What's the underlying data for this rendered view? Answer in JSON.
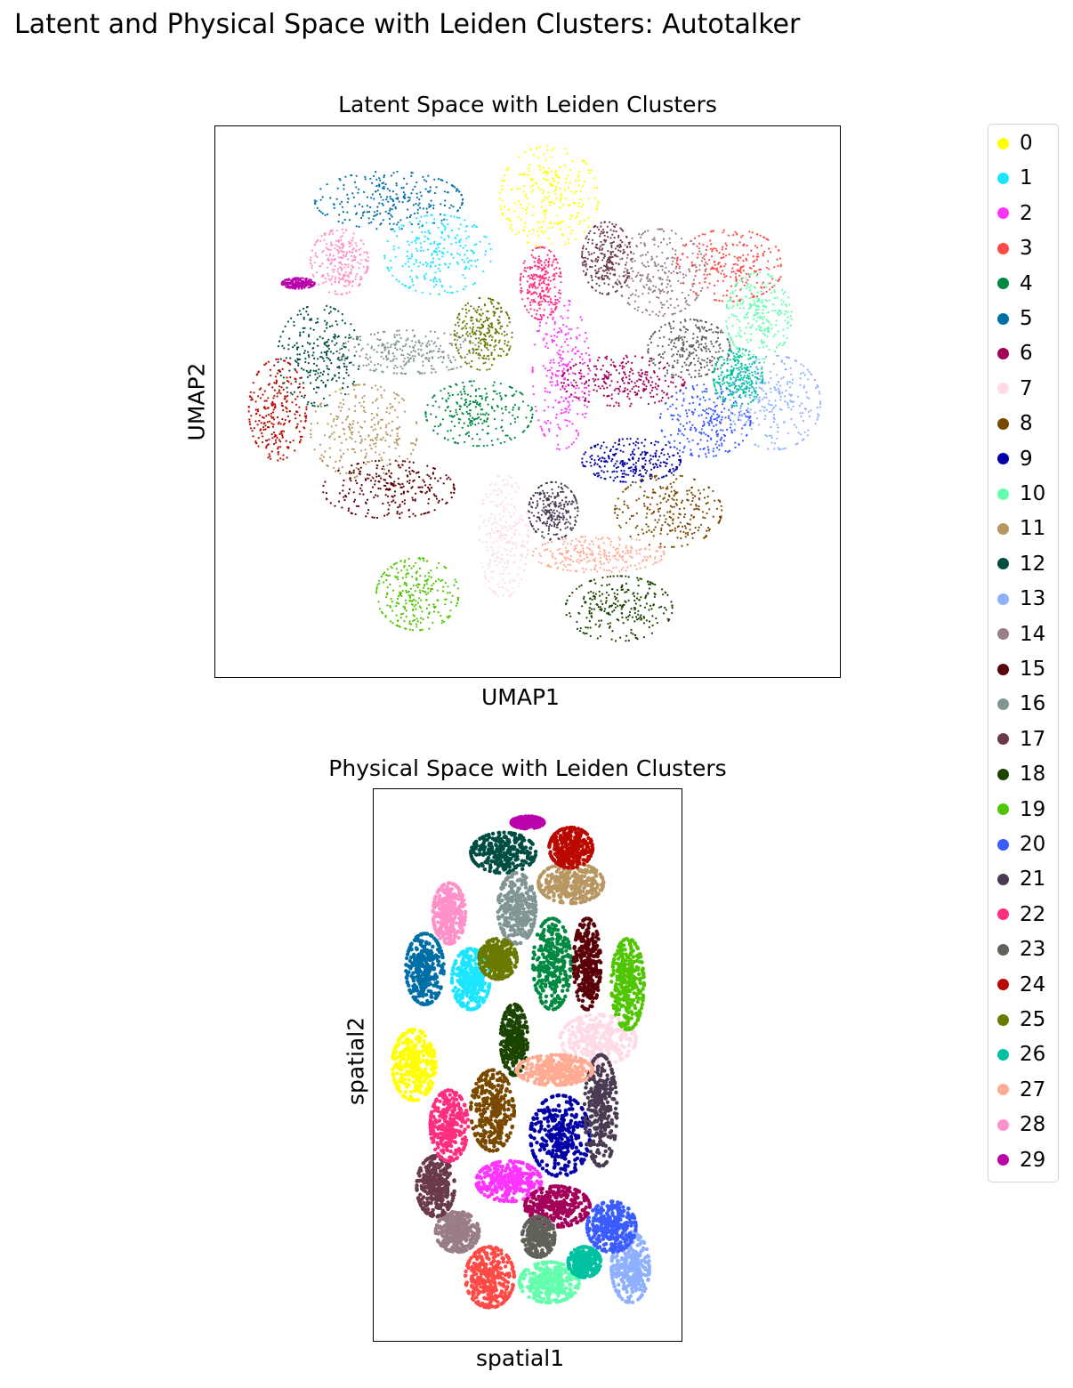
{
  "suptitle": "Latent and Physical Space with Leiden Clusters: Autotalker",
  "chart_data": [
    {
      "type": "scatter",
      "title": "Latent Space with Leiden Clusters",
      "xlabel": "UMAP1",
      "ylabel": "UMAP2",
      "xticks": [],
      "yticks": [],
      "xlim": [
        -7.4,
        7.4
      ],
      "ylim": [
        -7.4,
        7.4
      ],
      "cluster_centers": [
        {
          "cluster": "0",
          "x": 0.5,
          "y": 5.7,
          "rx": 1.2,
          "ry": 1.4
        },
        {
          "cluster": "1",
          "x": -2.2,
          "y": 4.1,
          "rx": 1.3,
          "ry": 1.1
        },
        {
          "cluster": "2",
          "x": 0.8,
          "y": 0.8,
          "rx": 0.7,
          "ry": 2.1
        },
        {
          "cluster": "3",
          "x": 4.9,
          "y": 3.8,
          "rx": 1.3,
          "ry": 1.0
        },
        {
          "cluster": "4",
          "x": -1.2,
          "y": -0.3,
          "rx": 1.3,
          "ry": 0.9
        },
        {
          "cluster": "5",
          "x": -3.4,
          "y": 5.6,
          "rx": 1.8,
          "ry": 0.8
        },
        {
          "cluster": "6",
          "x": 2.3,
          "y": 0.6,
          "rx": 1.5,
          "ry": 0.7
        },
        {
          "cluster": "7",
          "x": -0.6,
          "y": -3.7,
          "rx": 0.6,
          "ry": 1.7
        },
        {
          "cluster": "8",
          "x": 3.4,
          "y": -3.0,
          "rx": 1.3,
          "ry": 1.0
        },
        {
          "cluster": "9",
          "x": 2.5,
          "y": -1.6,
          "rx": 1.2,
          "ry": 0.6
        },
        {
          "cluster": "10",
          "x": 5.6,
          "y": 2.4,
          "rx": 0.8,
          "ry": 1.2
        },
        {
          "cluster": "11",
          "x": -4.0,
          "y": -0.8,
          "rx": 1.3,
          "ry": 1.3
        },
        {
          "cluster": "12",
          "x": -5.1,
          "y": 1.3,
          "rx": 1.0,
          "ry": 1.4
        },
        {
          "cluster": "13",
          "x": 6.0,
          "y": 0.0,
          "rx": 1.1,
          "ry": 1.3
        },
        {
          "cluster": "14",
          "x": 3.2,
          "y": 3.6,
          "rx": 1.1,
          "ry": 1.2
        },
        {
          "cluster": "15",
          "x": -3.4,
          "y": -2.4,
          "rx": 1.6,
          "ry": 0.8
        },
        {
          "cluster": "16",
          "x": -2.9,
          "y": 1.4,
          "rx": 1.7,
          "ry": 0.6
        },
        {
          "cluster": "17",
          "x": 1.9,
          "y": 4.0,
          "rx": 0.6,
          "ry": 1.0
        },
        {
          "cluster": "18",
          "x": 2.2,
          "y": -5.7,
          "rx": 1.3,
          "ry": 0.9
        },
        {
          "cluster": "19",
          "x": -2.7,
          "y": -5.3,
          "rx": 1.0,
          "ry": 1.0
        },
        {
          "cluster": "20",
          "x": 4.3,
          "y": -0.5,
          "rx": 1.1,
          "ry": 1.0
        },
        {
          "cluster": "21",
          "x": 0.6,
          "y": -3.0,
          "rx": 0.6,
          "ry": 0.8
        },
        {
          "cluster": "22",
          "x": 0.3,
          "y": 3.3,
          "rx": 0.5,
          "ry": 1.0
        },
        {
          "cluster": "23",
          "x": 3.9,
          "y": 1.5,
          "rx": 1.0,
          "ry": 0.8
        },
        {
          "cluster": "24",
          "x": -6.1,
          "y": -0.2,
          "rx": 0.7,
          "ry": 1.4
        },
        {
          "cluster": "25",
          "x": -1.1,
          "y": 1.9,
          "rx": 0.7,
          "ry": 1.0
        },
        {
          "cluster": "26",
          "x": 5.1,
          "y": 0.7,
          "rx": 0.6,
          "ry": 0.8
        },
        {
          "cluster": "27",
          "x": 1.7,
          "y": -4.2,
          "rx": 1.6,
          "ry": 0.5
        },
        {
          "cluster": "28",
          "x": -4.6,
          "y": 3.9,
          "rx": 0.7,
          "ry": 0.9
        },
        {
          "cluster": "29",
          "x": -5.6,
          "y": 3.3,
          "rx": 0.4,
          "ry": 0.15
        }
      ]
    },
    {
      "type": "scatter",
      "title": "Physical Space with Leiden Clusters",
      "xlabel": "spatial1",
      "ylabel": "spatial2",
      "xticks": [],
      "yticks": [],
      "xlim": [
        0,
        100
      ],
      "ylim": [
        0,
        100
      ],
      "cluster_centers": [
        {
          "cluster": "0",
          "x": 9,
          "y": 50,
          "rx": 8,
          "ry": 7
        },
        {
          "cluster": "1",
          "x": 30,
          "y": 67,
          "rx": 7,
          "ry": 6
        },
        {
          "cluster": "2",
          "x": 44,
          "y": 27,
          "rx": 12,
          "ry": 4
        },
        {
          "cluster": "3",
          "x": 37,
          "y": 8,
          "rx": 9,
          "ry": 6
        },
        {
          "cluster": "4",
          "x": 60,
          "y": 70,
          "rx": 7,
          "ry": 9
        },
        {
          "cluster": "5",
          "x": 13,
          "y": 69,
          "rx": 7,
          "ry": 7
        },
        {
          "cluster": "6",
          "x": 62,
          "y": 22,
          "rx": 12,
          "ry": 4
        },
        {
          "cluster": "7",
          "x": 77,
          "y": 55,
          "rx": 14,
          "ry": 5
        },
        {
          "cluster": "8",
          "x": 38,
          "y": 41,
          "rx": 8,
          "ry": 8
        },
        {
          "cluster": "9",
          "x": 63,
          "y": 36,
          "rx": 11,
          "ry": 8
        },
        {
          "cluster": "10",
          "x": 59,
          "y": 7,
          "rx": 11,
          "ry": 4
        },
        {
          "cluster": "11",
          "x": 67,
          "y": 86,
          "rx": 12,
          "ry": 4
        },
        {
          "cluster": "12",
          "x": 42,
          "y": 92,
          "rx": 12,
          "ry": 4
        },
        {
          "cluster": "13",
          "x": 89,
          "y": 10,
          "rx": 7,
          "ry": 7
        },
        {
          "cluster": "14",
          "x": 25,
          "y": 17,
          "rx": 8,
          "ry": 4
        },
        {
          "cluster": "15",
          "x": 73,
          "y": 70,
          "rx": 5,
          "ry": 9
        },
        {
          "cluster": "16",
          "x": 47,
          "y": 81,
          "rx": 7,
          "ry": 7
        },
        {
          "cluster": "17",
          "x": 17,
          "y": 26,
          "rx": 7,
          "ry": 6
        },
        {
          "cluster": "18",
          "x": 46,
          "y": 55,
          "rx": 5,
          "ry": 7
        },
        {
          "cluster": "19",
          "x": 88,
          "y": 66,
          "rx": 6,
          "ry": 9
        },
        {
          "cluster": "20",
          "x": 82,
          "y": 18,
          "rx": 9,
          "ry": 5
        },
        {
          "cluster": "21",
          "x": 78,
          "y": 41,
          "rx": 6,
          "ry": 11
        },
        {
          "cluster": "22",
          "x": 22,
          "y": 38,
          "rx": 7,
          "ry": 7
        },
        {
          "cluster": "23",
          "x": 55,
          "y": 16,
          "rx": 6,
          "ry": 4
        },
        {
          "cluster": "24",
          "x": 67,
          "y": 93,
          "rx": 8,
          "ry": 4
        },
        {
          "cluster": "25",
          "x": 40,
          "y": 71,
          "rx": 7,
          "ry": 4
        },
        {
          "cluster": "26",
          "x": 72,
          "y": 11,
          "rx": 6,
          "ry": 3
        },
        {
          "cluster": "27",
          "x": 61,
          "y": 49,
          "rx": 14,
          "ry": 3
        },
        {
          "cluster": "28",
          "x": 22,
          "y": 80,
          "rx": 6,
          "ry": 6
        },
        {
          "cluster": "29",
          "x": 51,
          "y": 98,
          "rx": 6,
          "ry": 1.2
        }
      ]
    }
  ],
  "legend": {
    "placement": "right",
    "entries": [
      {
        "label": "0",
        "color": "#ffff00"
      },
      {
        "label": "1",
        "color": "#1ce6ff"
      },
      {
        "label": "2",
        "color": "#ff34ff"
      },
      {
        "label": "3",
        "color": "#ff4a46"
      },
      {
        "label": "4",
        "color": "#008941"
      },
      {
        "label": "5",
        "color": "#006fa6"
      },
      {
        "label": "6",
        "color": "#a30059"
      },
      {
        "label": "7",
        "color": "#ffdbe5"
      },
      {
        "label": "8",
        "color": "#7a4900"
      },
      {
        "label": "9",
        "color": "#0000a6"
      },
      {
        "label": "10",
        "color": "#63ffac"
      },
      {
        "label": "11",
        "color": "#b79762"
      },
      {
        "label": "12",
        "color": "#004d43"
      },
      {
        "label": "13",
        "color": "#8fb0ff"
      },
      {
        "label": "14",
        "color": "#997d87"
      },
      {
        "label": "15",
        "color": "#5a0007"
      },
      {
        "label": "16",
        "color": "#809693"
      },
      {
        "label": "17",
        "color": "#6a3a4c"
      },
      {
        "label": "18",
        "color": "#1b4400"
      },
      {
        "label": "19",
        "color": "#4fc601"
      },
      {
        "label": "20",
        "color": "#3b5dff"
      },
      {
        "label": "21",
        "color": "#4a3b53"
      },
      {
        "label": "22",
        "color": "#ff2f80"
      },
      {
        "label": "23",
        "color": "#61615a"
      },
      {
        "label": "24",
        "color": "#ba0900"
      },
      {
        "label": "25",
        "color": "#6b7900"
      },
      {
        "label": "26",
        "color": "#00c2a0"
      },
      {
        "label": "27",
        "color": "#ffaa92"
      },
      {
        "label": "28",
        "color": "#ff90c9"
      },
      {
        "label": "29",
        "color": "#b903aa"
      }
    ]
  }
}
